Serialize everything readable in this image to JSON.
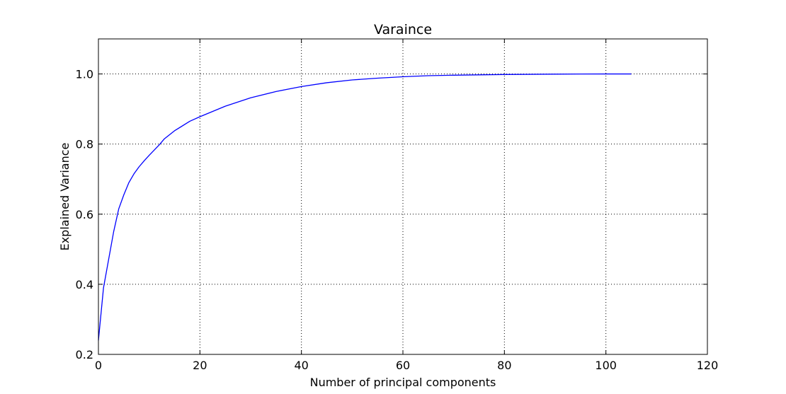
{
  "chart_data": {
    "type": "line",
    "title": "Varaince",
    "xlabel": "Number of principal components",
    "ylabel": "Explained Variance",
    "xlim": [
      0,
      120
    ],
    "ylim": [
      0.2,
      1.1
    ],
    "xticks": [
      0,
      20,
      40,
      60,
      80,
      100,
      120
    ],
    "xtick_labels": [
      "0",
      "20",
      "40",
      "60",
      "80",
      "100",
      "120"
    ],
    "yticks": [
      0.2,
      0.4,
      0.6,
      0.8,
      1.0
    ],
    "ytick_labels": [
      "0.2",
      "0.4",
      "0.6",
      "0.8",
      "1.0"
    ],
    "grid": true,
    "legend": "none",
    "series": [
      {
        "color": "#0000ff",
        "x": [
          0,
          1,
          2,
          3,
          4,
          5,
          6,
          7,
          8,
          9,
          10,
          12,
          13,
          15,
          18,
          20,
          25,
          30,
          35,
          40,
          45,
          50,
          55,
          60,
          65,
          70,
          75,
          80,
          85,
          90,
          95,
          100,
          105
        ],
        "y": [
          0.24,
          0.39,
          0.47,
          0.55,
          0.615,
          0.655,
          0.69,
          0.715,
          0.735,
          0.752,
          0.768,
          0.798,
          0.815,
          0.838,
          0.865,
          0.878,
          0.908,
          0.932,
          0.95,
          0.964,
          0.975,
          0.983,
          0.988,
          0.992,
          0.995,
          0.9965,
          0.9975,
          0.9985,
          0.999,
          0.9995,
          0.9998,
          1.0,
          1.0
        ]
      }
    ]
  }
}
